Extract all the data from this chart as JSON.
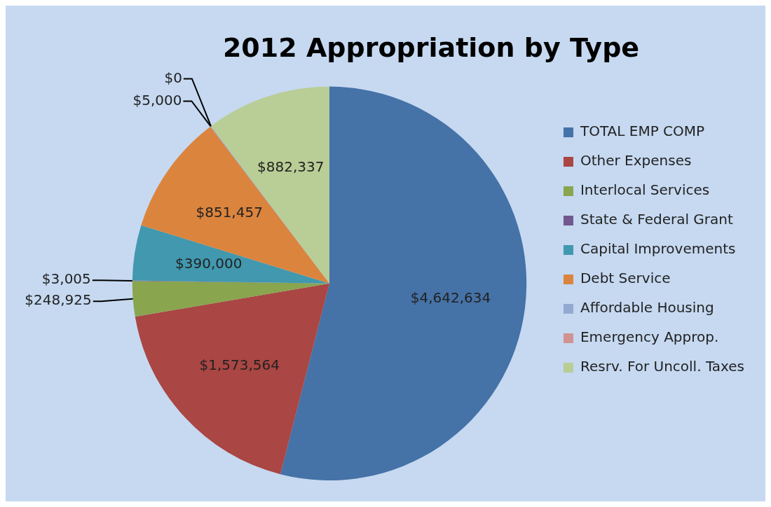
{
  "chart_data": {
    "type": "pie",
    "title": "2012 Appropriation by Type",
    "categories": [
      "TOTAL EMP COMP",
      "Other Expenses",
      "Interlocal Services",
      "State & Federal Grant",
      "Capital Improvements",
      "Debt Service",
      "Affordable Housing",
      "Emergency Approp.",
      "Resrv. For Uncoll. Taxes"
    ],
    "values": [
      4642634,
      1573564,
      248925,
      3005,
      390000,
      851457,
      5000,
      0,
      882337
    ],
    "colors": [
      "#4572a7",
      "#aa4643",
      "#89a54e",
      "#71588f",
      "#4198af",
      "#db843d",
      "#93a9cf",
      "#d19392",
      "#b9cd96"
    ],
    "value_labels": [
      "$4,642,634",
      "$1,573,564",
      "$248,925",
      "$3,005",
      "$390,000",
      "$851,457",
      "$5,000",
      "$0",
      "$882,337"
    ],
    "legend": "right"
  }
}
